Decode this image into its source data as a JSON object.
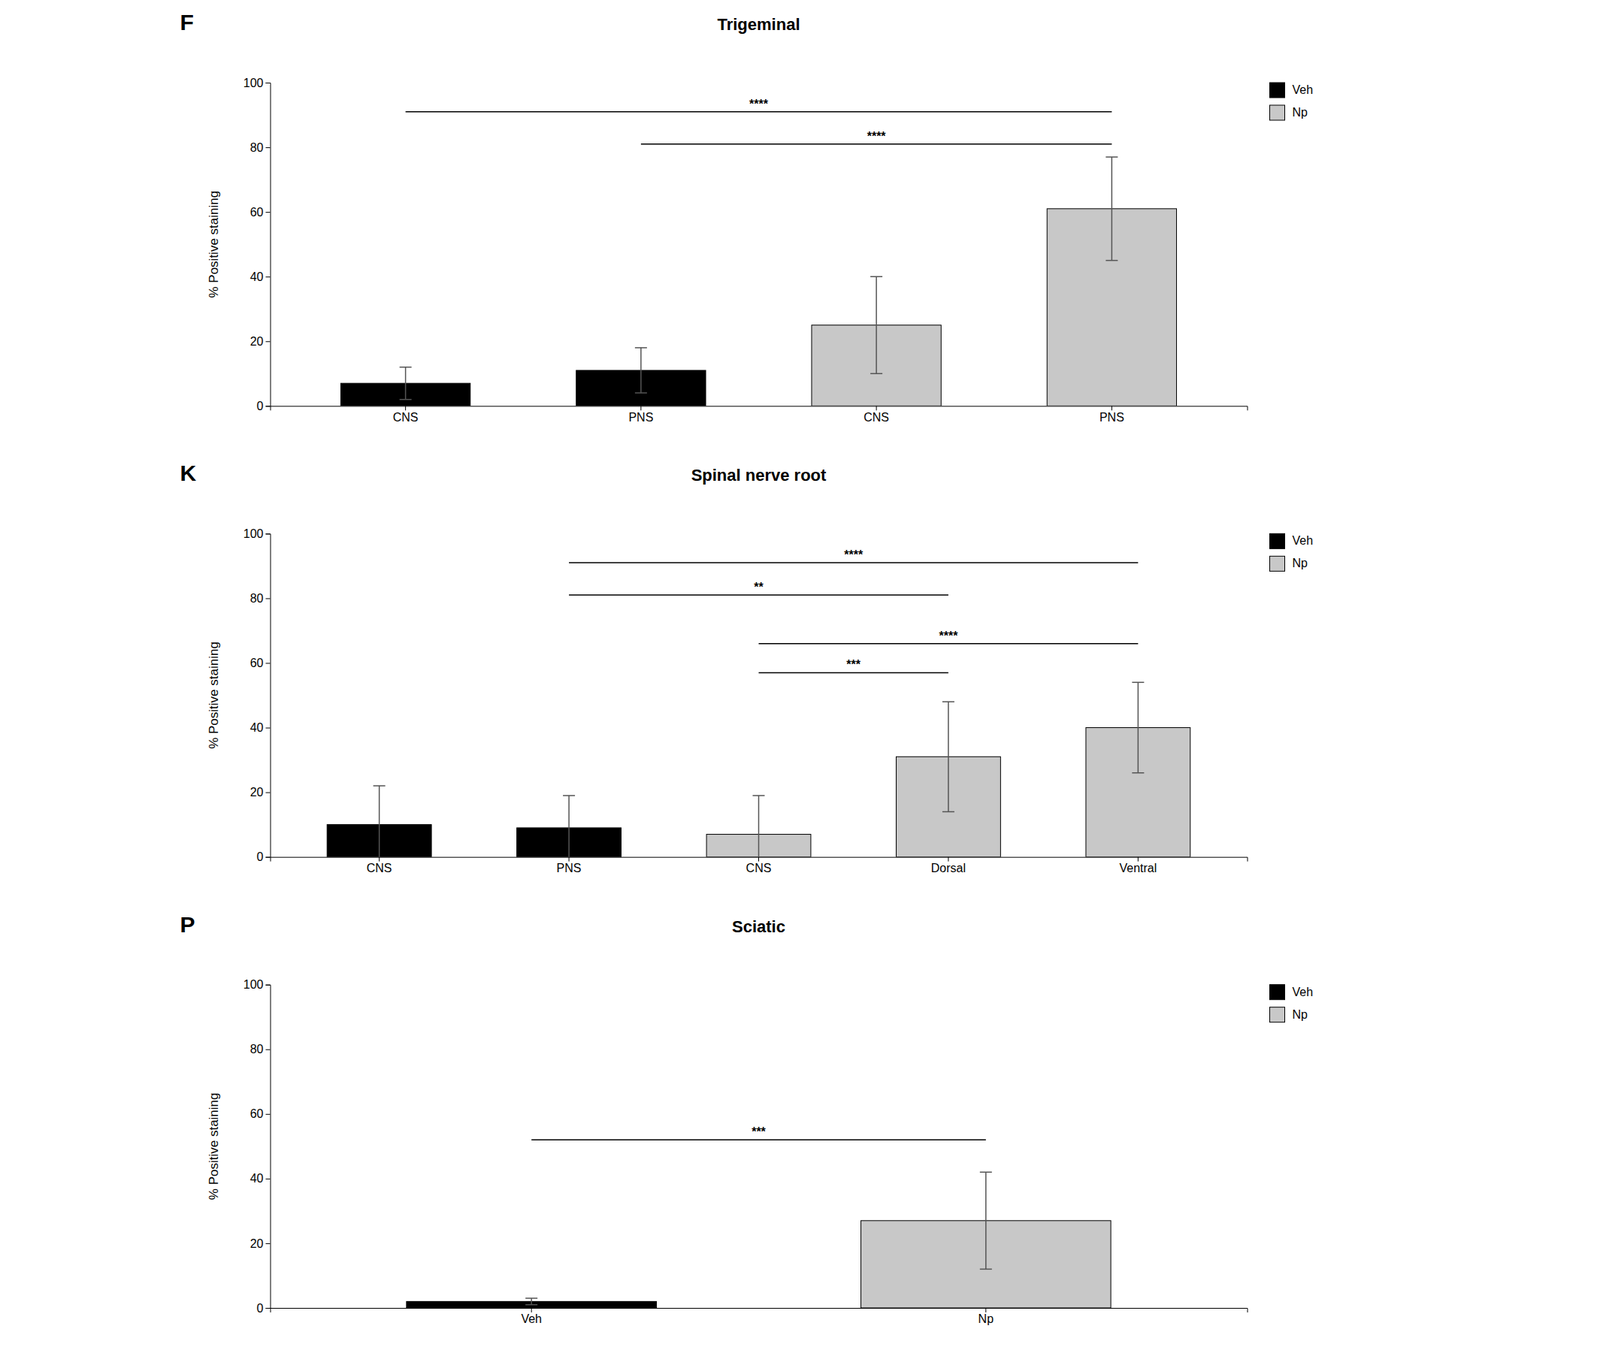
{
  "chart_data": [
    {
      "type": "bar",
      "title": "Trigeminal",
      "categories": [
        "CNS",
        "PNS",
        "CNS",
        "PNS"
      ],
      "series": [
        {
          "name": "Veh",
          "color": "#000000",
          "values": [
            7.0,
            11.0,
            null,
            null
          ],
          "errors": [
            5.0,
            7.0,
            null,
            null
          ]
        },
        {
          "name": "Np",
          "color": "#c8c8c8",
          "values": [
            null,
            null,
            25.0,
            61.0
          ],
          "errors": [
            null,
            null,
            15.0,
            16.0
          ]
        }
      ],
      "ylabel": "% Positive staining",
      "ylim": [
        0,
        100
      ],
      "yticks": [
        0,
        20,
        40,
        60,
        80,
        100
      ],
      "legend": "upper right",
      "significance": [
        {
          "x1": 0,
          "x2": 3,
          "y": 91,
          "label": "****"
        },
        {
          "x1": 1,
          "x2": 3,
          "y": 81,
          "label": "****"
        }
      ],
      "annotations": [
        {
          "text": "F"
        }
      ]
    },
    {
      "type": "bar",
      "title": "Spinal nerve root",
      "categories": [
        "CNS",
        "PNS",
        "CNS",
        "Dorsal",
        "Ventral"
      ],
      "series": [
        {
          "name": "Veh",
          "color": "#000000",
          "values": [
            10.0,
            9.0,
            null,
            null,
            null
          ],
          "errors": [
            12.0,
            10.0,
            null,
            null,
            null
          ]
        },
        {
          "name": "Np",
          "color": "#c8c8c8",
          "values": [
            null,
            null,
            7.0,
            31.0,
            40.0
          ],
          "errors": [
            null,
            null,
            12.0,
            17.0,
            14.0
          ]
        }
      ],
      "ylabel": "% Positive staining",
      "ylim": [
        0,
        100
      ],
      "yticks": [
        0,
        20,
        40,
        60,
        80,
        100
      ],
      "legend": "upper right",
      "significance": [
        {
          "x1": 1,
          "x2": 4,
          "y": 91,
          "label": "****"
        },
        {
          "x1": 1,
          "x2": 3,
          "y": 81,
          "label": "**"
        },
        {
          "x1": 2,
          "x2": 4,
          "y": 66,
          "label": "****"
        },
        {
          "x1": 2,
          "x2": 3,
          "y": 57,
          "label": "***"
        }
      ],
      "annotations": [
        {
          "text": "K"
        }
      ]
    },
    {
      "type": "bar",
      "title": "Sciatic",
      "categories": [
        "Veh",
        "Np"
      ],
      "series": [
        {
          "name": "Veh",
          "color": "#000000",
          "values": [
            2.0,
            null
          ],
          "errors": [
            1.0,
            null
          ]
        },
        {
          "name": "Np",
          "color": "#c8c8c8",
          "values": [
            null,
            27.0
          ],
          "errors": [
            null,
            15.0
          ]
        }
      ],
      "ylabel": "% Positive staining",
      "ylim": [
        0,
        100
      ],
      "yticks": [
        0,
        20,
        40,
        60,
        80,
        100
      ],
      "legend": "upper right",
      "significance": [
        {
          "x1": 0,
          "x2": 1,
          "y": 52,
          "label": "***"
        }
      ],
      "annotations": [
        {
          "text": "P"
        }
      ]
    }
  ]
}
